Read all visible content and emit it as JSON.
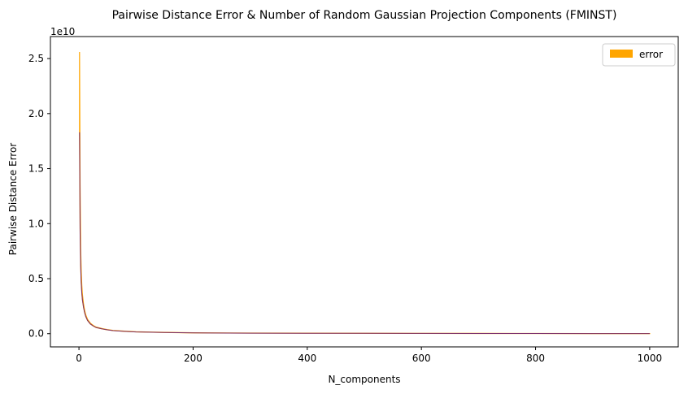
{
  "chart_data": {
    "type": "area",
    "title": "Pairwise Distance Error & Number of Random Gaussian Projection Components (FMINST)",
    "xlabel": "N_components",
    "ylabel": "Pairwise Distance Error",
    "y_offset_label": "1e10",
    "xlim": [
      -50,
      1050
    ],
    "ylim": [
      -0.12,
      2.7
    ],
    "y_scale_note": "values in units of 1e10",
    "x_ticks": [
      0,
      200,
      400,
      600,
      800,
      1000
    ],
    "x_tick_labels": [
      "0",
      "200",
      "400",
      "600",
      "800",
      "1000"
    ],
    "y_ticks": [
      0.0,
      0.5,
      1.0,
      1.5,
      2.0,
      2.5
    ],
    "y_tick_labels": [
      "0.0",
      "0.5",
      "1.0",
      "1.5",
      "2.0",
      "2.5"
    ],
    "grid": false,
    "legend_position": "top-right",
    "series": [
      {
        "name": "error",
        "color": "#ffa500",
        "style": "filled band (upper bound)",
        "x": [
          1,
          2,
          3,
          4,
          5,
          6,
          8,
          10,
          12,
          15,
          20,
          25,
          30,
          40,
          50,
          60,
          80,
          100,
          150,
          200,
          300,
          400,
          500,
          600,
          700,
          800,
          900,
          1000
        ],
        "y": [
          2.56,
          1.35,
          0.78,
          0.56,
          0.44,
          0.36,
          0.27,
          0.21,
          0.17,
          0.13,
          0.095,
          0.075,
          0.06,
          0.047,
          0.037,
          0.03,
          0.023,
          0.018,
          0.012,
          0.008,
          0.006,
          0.005,
          0.004,
          0.003,
          0.0025,
          0.002,
          0.0015,
          0.001
        ]
      },
      {
        "name": "",
        "color": "#7a2f6e",
        "style": "mean line",
        "x": [
          1,
          2,
          3,
          4,
          5,
          6,
          8,
          10,
          12,
          15,
          20,
          25,
          30,
          40,
          50,
          60,
          80,
          100,
          150,
          200,
          300,
          400,
          500,
          600,
          700,
          800,
          900,
          1000
        ],
        "y": [
          1.83,
          0.95,
          0.62,
          0.46,
          0.37,
          0.31,
          0.24,
          0.19,
          0.155,
          0.12,
          0.088,
          0.07,
          0.056,
          0.044,
          0.035,
          0.028,
          0.021,
          0.016,
          0.011,
          0.007,
          0.005,
          0.004,
          0.0035,
          0.0025,
          0.002,
          0.0015,
          0.001,
          0.0008
        ]
      }
    ]
  }
}
